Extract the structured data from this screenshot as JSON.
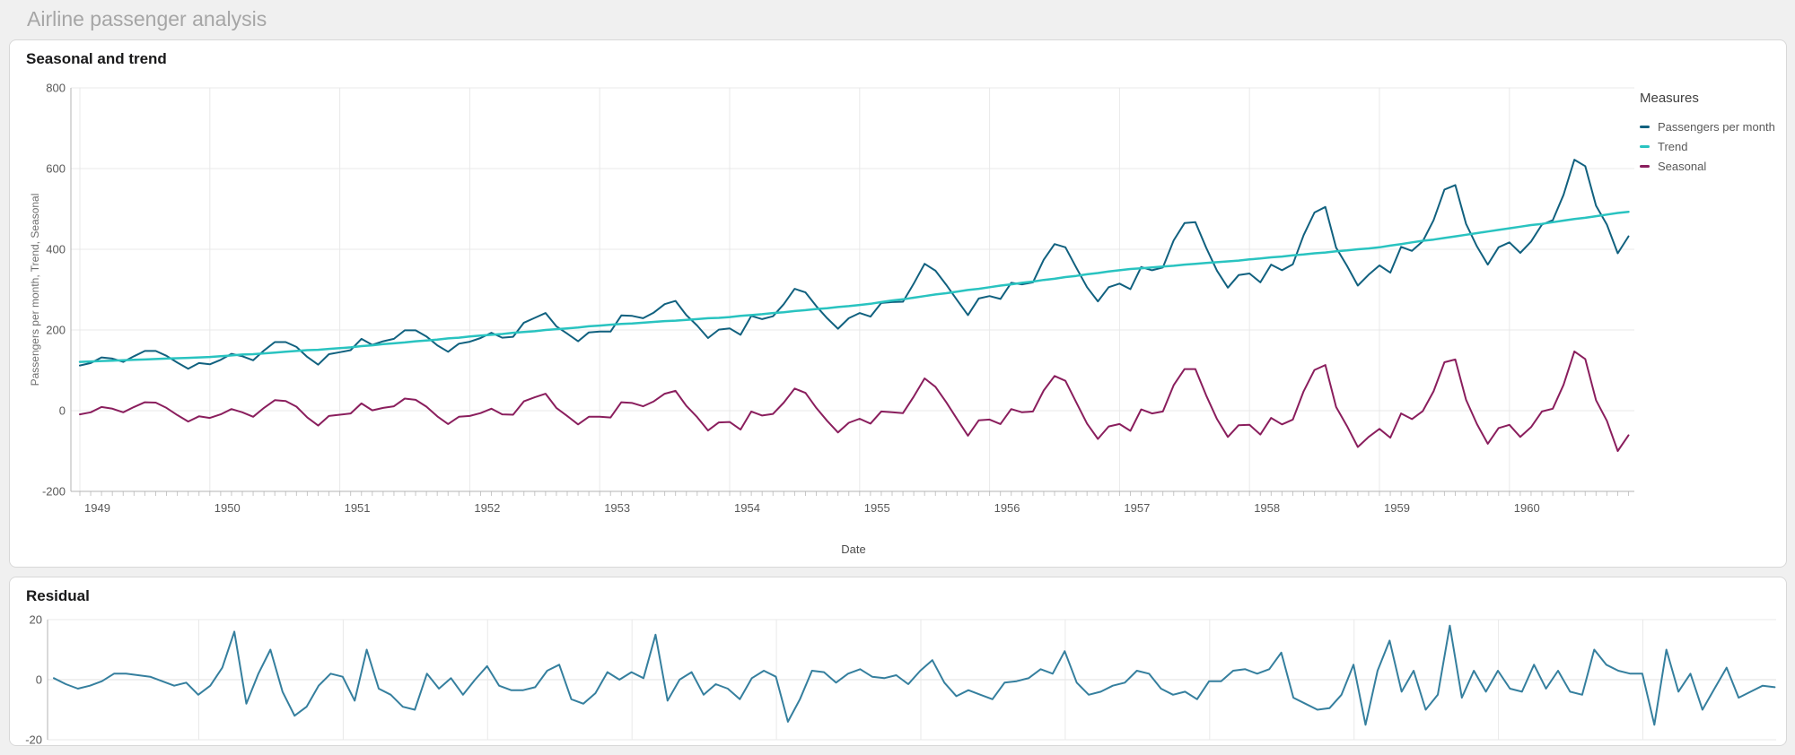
{
  "page": {
    "title": "Airline passenger analysis"
  },
  "chart_data": [
    {
      "type": "line",
      "title": "Seasonal and trend",
      "xlabel": "Date",
      "ylabel": "Passengers per month, Trend, Seasonal",
      "legend_title": "Measures",
      "legend_position": "right",
      "grid": true,
      "x_unit": "month",
      "x_start": "1949-01",
      "x_end": "1960-12",
      "x_tick_labels": [
        "1949",
        "1950",
        "1951",
        "1952",
        "1953",
        "1954",
        "1955",
        "1956",
        "1957",
        "1958",
        "1959",
        "1960"
      ],
      "ylim": [
        -200,
        800
      ],
      "y_ticks": [
        800,
        600,
        400,
        200,
        0,
        -200
      ],
      "series": [
        {
          "name": "Passengers per month",
          "color": "#11617f",
          "values": [
            112,
            118,
            132,
            129,
            121,
            135,
            148,
            148,
            136,
            119,
            104,
            118,
            115,
            126,
            141,
            135,
            125,
            149,
            170,
            170,
            158,
            133,
            114,
            140,
            145,
            150,
            178,
            163,
            172,
            178,
            199,
            199,
            184,
            162,
            146,
            166,
            171,
            180,
            193,
            181,
            183,
            218,
            230,
            242,
            209,
            191,
            172,
            194,
            196,
            196,
            236,
            235,
            229,
            243,
            264,
            272,
            237,
            211,
            180,
            201,
            204,
            188,
            235,
            227,
            234,
            264,
            302,
            293,
            259,
            229,
            203,
            229,
            242,
            233,
            267,
            269,
            270,
            315,
            364,
            347,
            312,
            274,
            237,
            278,
            284,
            277,
            317,
            313,
            318,
            374,
            413,
            405,
            355,
            306,
            271,
            306,
            315,
            301,
            356,
            348,
            355,
            422,
            465,
            467,
            404,
            347,
            305,
            336,
            340,
            318,
            362,
            348,
            363,
            435,
            491,
            505,
            404,
            359,
            310,
            337,
            360,
            342,
            406,
            396,
            420,
            472,
            548,
            559,
            463,
            407,
            362,
            405,
            417,
            391,
            419,
            461,
            472,
            535,
            622,
            606,
            508,
            461,
            390,
            432
          ]
        },
        {
          "name": "Trend",
          "color": "#29c3c0",
          "values": [
            121,
            122,
            123,
            124,
            125,
            126,
            127,
            128,
            129,
            130,
            131,
            132,
            133,
            135,
            137,
            139,
            140,
            142,
            144,
            146,
            148,
            150,
            151,
            153,
            155,
            157,
            160,
            162,
            165,
            167,
            169,
            172,
            174,
            176,
            179,
            181,
            184,
            186,
            188,
            190,
            193,
            195,
            197,
            200,
            202,
            204,
            206,
            209,
            211,
            213,
            215,
            216,
            218,
            220,
            222,
            223,
            225,
            227,
            229,
            230,
            232,
            235,
            237,
            239,
            242,
            244,
            247,
            249,
            252,
            254,
            257,
            259,
            262,
            265,
            269,
            273,
            276,
            280,
            284,
            288,
            291,
            295,
            299,
            302,
            306,
            310,
            313,
            317,
            320,
            324,
            327,
            331,
            334,
            338,
            341,
            345,
            348,
            351,
            353,
            355,
            357,
            359,
            362,
            364,
            366,
            368,
            370,
            372,
            375,
            377,
            380,
            382,
            385,
            387,
            390,
            392,
            395,
            397,
            400,
            402,
            405,
            409,
            413,
            417,
            421,
            424,
            428,
            432,
            436,
            440,
            444,
            448,
            452,
            456,
            460,
            463,
            467,
            471,
            475,
            478,
            482,
            486,
            490,
            493
          ]
        },
        {
          "name": "Seasonal",
          "color": "#8a1e5d",
          "values": [
            -9,
            -4,
            9,
            5,
            -4,
            9,
            21,
            20,
            7,
            -11,
            -27,
            -14,
            -18,
            -9,
            4,
            -4,
            -15,
            7,
            26,
            24,
            10,
            -17,
            -37,
            -13,
            -10,
            -7,
            18,
            1,
            7,
            11,
            30,
            27,
            10,
            -14,
            -33,
            -15,
            -13,
            -6,
            5,
            -9,
            -10,
            23,
            33,
            42,
            7,
            -13,
            -34,
            -15,
            -15,
            -17,
            21,
            19,
            11,
            23,
            42,
            49,
            12,
            -16,
            -49,
            -29,
            -28,
            -47,
            -2,
            -12,
            -8,
            20,
            55,
            44,
            7,
            -25,
            -54,
            -30,
            -20,
            -32,
            -2,
            -4,
            -6,
            35,
            80,
            59,
            21,
            -21,
            -62,
            -24,
            -22,
            -33,
            4,
            -4,
            -2,
            50,
            86,
            74,
            21,
            -32,
            -70,
            -39,
            -33,
            -50,
            3,
            -7,
            -2,
            63,
            103,
            103,
            38,
            -21,
            -65,
            -36,
            -35,
            -59,
            -18,
            -34,
            -22,
            48,
            101,
            113,
            9,
            -38,
            -90,
            -65,
            -45,
            -67,
            -7,
            -21,
            -1,
            48,
            120,
            127,
            27,
            -33,
            -82,
            -43,
            -35,
            -65,
            -41,
            -2,
            5,
            64,
            147,
            128,
            26,
            -25,
            -100,
            -61
          ]
        }
      ]
    },
    {
      "type": "line",
      "title": "Residual",
      "x_unit": "month",
      "x_start": "1949-01",
      "x_end": "1960-12",
      "ylim": [
        -20,
        20
      ],
      "y_ticks": [
        20,
        0,
        -20
      ],
      "grid": true,
      "series": [
        {
          "name": "Residual",
          "color": "#357f9e",
          "values": [
            0.5,
            -1.5,
            -3,
            -2,
            -0.5,
            2,
            2,
            1.5,
            1,
            -0.5,
            -2,
            -1,
            -5,
            -2,
            4,
            16,
            -8,
            2,
            10,
            -4,
            -12,
            -9,
            -2,
            2,
            1,
            -7,
            10,
            -3,
            -5,
            -9,
            -10,
            2,
            -3,
            0.5,
            -5,
            0,
            4.5,
            -2,
            -3.5,
            -3.5,
            -2.5,
            3,
            5,
            -6.5,
            -8,
            -4.5,
            2.5,
            0,
            2.5,
            0.5,
            15,
            -7,
            0,
            2.5,
            -5,
            -1.5,
            -3,
            -6.5,
            0.5,
            3,
            1,
            -14,
            -6.5,
            3,
            2.5,
            -1,
            2,
            3.5,
            1,
            0.5,
            1.5,
            -1.5,
            3,
            6.5,
            -1,
            -5.5,
            -3.5,
            -5,
            -6.5,
            -1,
            -0.5,
            0.5,
            3.5,
            2,
            9.5,
            -1,
            -5,
            -4,
            -2,
            -1,
            3,
            2,
            -3,
            -5,
            -4,
            -6.5,
            -0.5,
            -0.5,
            3,
            3.5,
            2,
            3.5,
            9,
            -6,
            -8,
            -10,
            -9.5,
            -5,
            5,
            -15,
            3,
            13,
            -4,
            3,
            -10,
            -5,
            18,
            -6,
            3,
            -4,
            3,
            -3,
            -4,
            5,
            -3,
            3,
            -4,
            -5,
            10,
            5,
            3,
            2,
            2,
            -15,
            10,
            -4,
            2,
            -10,
            -3,
            4,
            -6,
            -4,
            -2,
            -2.5
          ]
        }
      ]
    }
  ]
}
